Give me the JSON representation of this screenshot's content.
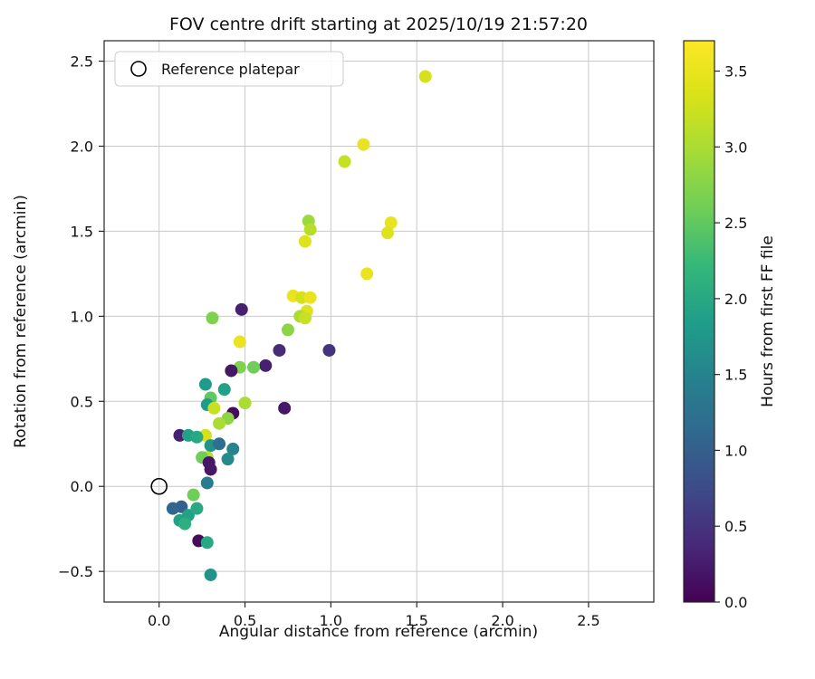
{
  "chart_data": {
    "type": "scatter",
    "title": "FOV centre drift starting at 2025/10/19 21:57:20",
    "xlabel": "Angular distance from reference (arcmin)",
    "ylabel": "Rotation from reference (arcmin)",
    "xlim": [
      -0.32,
      2.88
    ],
    "ylim": [
      -0.68,
      2.62
    ],
    "xticks": [
      0.0,
      0.5,
      1.0,
      1.5,
      2.0,
      2.5
    ],
    "yticks": [
      -0.5,
      0.0,
      0.5,
      1.0,
      1.5,
      2.0,
      2.5
    ],
    "grid": true,
    "grid_color": "#c9c9c9",
    "spine_color": "#262626",
    "marker_size_px": 7,
    "legend": {
      "label": "Reference platepar",
      "position": "upper left",
      "marker": "open-circle"
    },
    "reference_point": {
      "x": 0.0,
      "y": 0.0
    },
    "colorbar": {
      "label": "Hours from first FF file",
      "vmin": 0.0,
      "vmax": 3.7,
      "ticks": [
        0.0,
        0.5,
        1.0,
        1.5,
        2.0,
        2.5,
        3.0,
        3.5
      ],
      "colormap": "viridis"
    },
    "colormap_stops": [
      {
        "t": 0.0,
        "color": "#440154"
      },
      {
        "t": 0.1,
        "color": "#482878"
      },
      {
        "t": 0.2,
        "color": "#3e4a89"
      },
      {
        "t": 0.3,
        "color": "#31688e"
      },
      {
        "t": 0.4,
        "color": "#26828e"
      },
      {
        "t": 0.5,
        "color": "#1f9e89"
      },
      {
        "t": 0.6,
        "color": "#35b779"
      },
      {
        "t": 0.7,
        "color": "#6ece58"
      },
      {
        "t": 0.8,
        "color": "#a5db36"
      },
      {
        "t": 0.9,
        "color": "#d8e219"
      },
      {
        "t": 1.0,
        "color": "#fde725"
      }
    ],
    "points_format": [
      "x_arcmin",
      "y_arcmin",
      "hours"
    ],
    "points": [
      [
        1.55,
        2.41,
        3.3
      ],
      [
        1.19,
        2.01,
        3.5
      ],
      [
        1.08,
        1.91,
        3.2
      ],
      [
        1.35,
        1.55,
        3.5
      ],
      [
        1.33,
        1.49,
        3.4
      ],
      [
        0.87,
        1.56,
        2.9
      ],
      [
        0.88,
        1.51,
        3.1
      ],
      [
        0.85,
        1.44,
        3.4
      ],
      [
        1.21,
        1.25,
        3.5
      ],
      [
        0.78,
        1.12,
        3.5
      ],
      [
        0.83,
        1.11,
        3.3
      ],
      [
        0.88,
        1.11,
        3.5
      ],
      [
        0.86,
        1.03,
        3.4
      ],
      [
        0.82,
        1.0,
        3.0
      ],
      [
        0.85,
        0.99,
        3.2
      ],
      [
        0.48,
        1.04,
        0.3
      ],
      [
        0.31,
        0.99,
        2.7
      ],
      [
        0.75,
        0.92,
        2.8
      ],
      [
        0.99,
        0.8,
        0.5
      ],
      [
        0.47,
        0.85,
        3.5
      ],
      [
        0.7,
        0.8,
        0.4
      ],
      [
        0.62,
        0.71,
        0.3
      ],
      [
        0.55,
        0.7,
        2.6
      ],
      [
        0.47,
        0.7,
        2.7
      ],
      [
        0.42,
        0.68,
        0.2
      ],
      [
        0.73,
        0.46,
        0.2
      ],
      [
        0.43,
        0.43,
        0.1
      ],
      [
        0.5,
        0.49,
        3.0
      ],
      [
        0.38,
        0.57,
        1.9
      ],
      [
        0.27,
        0.6,
        1.8
      ],
      [
        0.3,
        0.52,
        2.5
      ],
      [
        0.28,
        0.48,
        1.8
      ],
      [
        0.32,
        0.46,
        3.2
      ],
      [
        0.4,
        0.4,
        2.8
      ],
      [
        0.35,
        0.37,
        3.0
      ],
      [
        0.27,
        0.3,
        3.3
      ],
      [
        0.12,
        0.3,
        0.3
      ],
      [
        0.17,
        0.3,
        1.9
      ],
      [
        0.22,
        0.29,
        2.0
      ],
      [
        0.3,
        0.24,
        1.7
      ],
      [
        0.35,
        0.25,
        1.2
      ],
      [
        0.43,
        0.22,
        1.5
      ],
      [
        0.4,
        0.16,
        1.6
      ],
      [
        0.28,
        0.17,
        3.1
      ],
      [
        0.25,
        0.17,
        2.6
      ],
      [
        0.29,
        0.14,
        0.2
      ],
      [
        0.3,
        0.1,
        0.2
      ],
      [
        0.28,
        0.02,
        1.4
      ],
      [
        0.2,
        -0.05,
        2.6
      ],
      [
        0.13,
        -0.12,
        1.0
      ],
      [
        0.08,
        -0.13,
        1.1
      ],
      [
        0.17,
        -0.17,
        1.9
      ],
      [
        0.22,
        -0.13,
        2.0
      ],
      [
        0.12,
        -0.2,
        1.9
      ],
      [
        0.15,
        -0.22,
        2.1
      ],
      [
        0.23,
        -0.32,
        0.1
      ],
      [
        0.28,
        -0.33,
        2.0
      ],
      [
        0.3,
        -0.52,
        1.7
      ]
    ]
  }
}
